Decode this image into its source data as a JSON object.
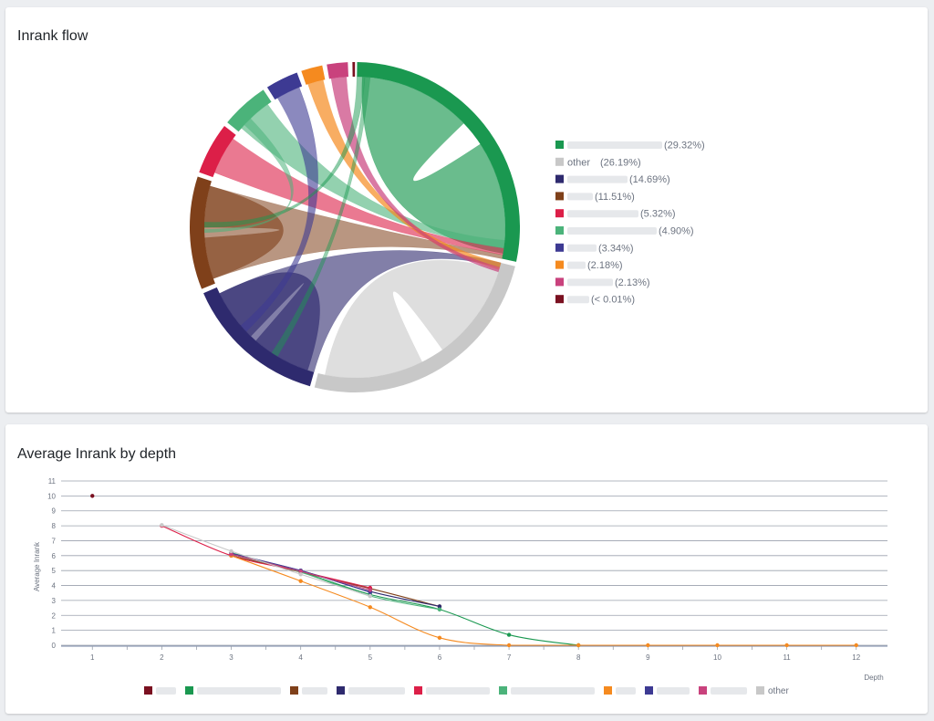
{
  "flow_card": {
    "title": "Inrank flow"
  },
  "depth_card": {
    "title": "Average Inrank by depth"
  },
  "chart_data": [
    {
      "type": "chord",
      "title": "Inrank flow",
      "legend_position": "right",
      "groups": [
        {
          "name": "",
          "percent_label": "(29.32%)",
          "value": 29.32,
          "color": "#1a9850"
        },
        {
          "name": "other",
          "percent_label": "(26.19%)",
          "value": 26.19,
          "color": "#c8c8c8"
        },
        {
          "name": "",
          "percent_label": "(14.69%)",
          "value": 14.69,
          "color": "#2e2a6e"
        },
        {
          "name": "",
          "percent_label": "(11.51%)",
          "value": 11.51,
          "color": "#7f401a"
        },
        {
          "name": "",
          "percent_label": "(5.32%)",
          "value": 5.32,
          "color": "#dc1f48"
        },
        {
          "name": "",
          "percent_label": "(4.90%)",
          "value": 4.9,
          "color": "#4bb37a"
        },
        {
          "name": "",
          "percent_label": "(3.34%)",
          "value": 3.34,
          "color": "#3d3a93"
        },
        {
          "name": "",
          "percent_label": "(2.18%)",
          "value": 2.18,
          "color": "#f58a1f"
        },
        {
          "name": "",
          "percent_label": "(2.13%)",
          "value": 2.13,
          "color": "#c9427d"
        },
        {
          "name": "",
          "percent_label": "(< 0.01%)",
          "value": 0.01,
          "color": "#7a1020"
        }
      ]
    },
    {
      "type": "line",
      "title": "Average Inrank by depth",
      "xlabel": "Depth",
      "ylabel": "Average Inrank",
      "x": [
        1,
        2,
        3,
        4,
        5,
        6,
        7,
        8,
        9,
        10,
        11,
        12
      ],
      "xlim": [
        0.55,
        12.45
      ],
      "ylim": [
        0,
        11
      ],
      "yticks": [
        0,
        1,
        2,
        3,
        4,
        5,
        6,
        7,
        8,
        9,
        10,
        11
      ],
      "grid": true,
      "legend_position": "bottom",
      "series": [
        {
          "name": "",
          "color": "#7a1020",
          "values": [
            10,
            null,
            null,
            null,
            null,
            null,
            null,
            null,
            null,
            null,
            null,
            null
          ]
        },
        {
          "name": "",
          "color": "#1a9850",
          "values": [
            null,
            null,
            6.1,
            4.9,
            3.4,
            2.4,
            0.7,
            0,
            null,
            null,
            null,
            null
          ]
        },
        {
          "name": "",
          "color": "#7f401a",
          "values": [
            null,
            null,
            6.0,
            4.9,
            3.8,
            2.6,
            null,
            null,
            null,
            null,
            null,
            null
          ]
        },
        {
          "name": "",
          "color": "#2e2a6e",
          "values": [
            null,
            null,
            6.1,
            5.0,
            3.6,
            2.6,
            null,
            null,
            null,
            null,
            null,
            null
          ]
        },
        {
          "name": "",
          "color": "#dc1f48",
          "values": [
            null,
            8.0,
            6.0,
            4.95,
            3.85,
            null,
            null,
            null,
            null,
            null,
            null,
            null
          ]
        },
        {
          "name": "",
          "color": "#4bb37a",
          "values": [
            null,
            null,
            6.2,
            4.9,
            3.3,
            2.4,
            null,
            null,
            null,
            null,
            null,
            null
          ]
        },
        {
          "name": "",
          "color": "#f58a1f",
          "values": [
            null,
            null,
            6.0,
            4.3,
            2.55,
            0.5,
            0,
            0,
            0,
            0,
            0,
            0
          ]
        },
        {
          "name": "",
          "color": "#3d3a93",
          "values": [
            null,
            null,
            6.15,
            5.0,
            3.55,
            null,
            null,
            null,
            null,
            null,
            null,
            null
          ]
        },
        {
          "name": "",
          "color": "#c9427d",
          "values": [
            null,
            null,
            6.1,
            4.95,
            3.7,
            null,
            null,
            null,
            null,
            null,
            null,
            null
          ]
        },
        {
          "name": "other",
          "color": "#c8c8c8",
          "values": [
            null,
            8.05,
            6.3,
            4.75,
            3.3,
            null,
            null,
            null,
            null,
            null,
            null,
            null
          ]
        }
      ]
    }
  ]
}
